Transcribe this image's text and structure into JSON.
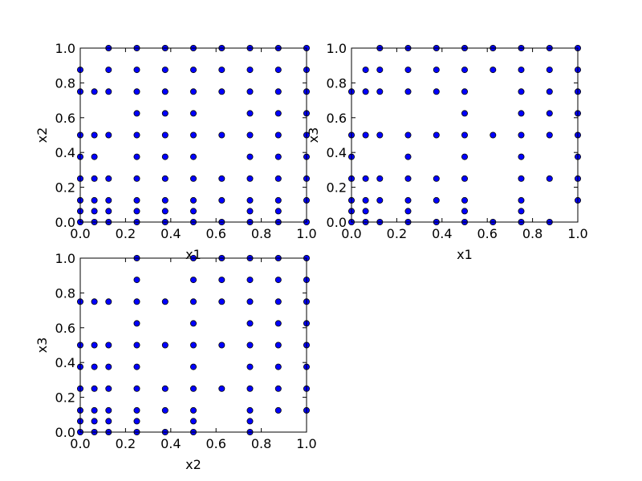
{
  "colors": {
    "marker_fill": "#0000ff",
    "marker_edge": "#000000",
    "axes": "#000000",
    "background": "#ffffff"
  },
  "chart_data": [
    {
      "type": "scatter",
      "title": "",
      "xlabel": "x1",
      "ylabel": "x2",
      "xlim": [
        0,
        1
      ],
      "ylim": [
        0,
        1
      ],
      "xticks": [
        "0.0",
        "0.2",
        "0.4",
        "0.6",
        "0.8",
        "1.0"
      ],
      "yticks": [
        "0.0",
        "0.2",
        "0.4",
        "0.6",
        "0.8",
        "1.0"
      ],
      "grid": false,
      "legend": "none",
      "x_values": [
        0,
        0.0625,
        0.125,
        0.25,
        0.375,
        0.5,
        0.625,
        0.75,
        0.875,
        1
      ],
      "y_values": [
        0,
        0.0625,
        0.125,
        0.25,
        0.375,
        0.5,
        0.625,
        0.75,
        0.875,
        1
      ],
      "points": [
        [
          0,
          0
        ],
        [
          0,
          0.0625
        ],
        [
          0,
          0.125
        ],
        [
          0,
          0.25
        ],
        [
          0,
          0.375
        ],
        [
          0,
          0.5
        ],
        [
          0,
          0.75
        ],
        [
          0,
          0.875
        ],
        [
          0.0625,
          0
        ],
        [
          0.0625,
          0.0625
        ],
        [
          0.0625,
          0.125
        ],
        [
          0.0625,
          0.25
        ],
        [
          0.0625,
          0.375
        ],
        [
          0.0625,
          0.5
        ],
        [
          0.0625,
          0.75
        ],
        [
          0.125,
          0
        ],
        [
          0.125,
          0.0625
        ],
        [
          0.125,
          0.125
        ],
        [
          0.125,
          0.25
        ],
        [
          0.125,
          0.5
        ],
        [
          0.125,
          0.75
        ],
        [
          0.125,
          0.875
        ],
        [
          0.125,
          1
        ],
        [
          0.25,
          0
        ],
        [
          0.25,
          0.0625
        ],
        [
          0.25,
          0.125
        ],
        [
          0.25,
          0.25
        ],
        [
          0.25,
          0.375
        ],
        [
          0.25,
          0.5
        ],
        [
          0.25,
          0.625
        ],
        [
          0.25,
          0.75
        ],
        [
          0.25,
          0.875
        ],
        [
          0.25,
          1
        ],
        [
          0.375,
          0
        ],
        [
          0.375,
          0.0625
        ],
        [
          0.375,
          0.125
        ],
        [
          0.375,
          0.25
        ],
        [
          0.375,
          0.375
        ],
        [
          0.375,
          0.5
        ],
        [
          0.375,
          0.625
        ],
        [
          0.375,
          0.75
        ],
        [
          0.375,
          0.875
        ],
        [
          0.375,
          1
        ],
        [
          0.5,
          0
        ],
        [
          0.5,
          0.0625
        ],
        [
          0.5,
          0.125
        ],
        [
          0.5,
          0.25
        ],
        [
          0.5,
          0.375
        ],
        [
          0.5,
          0.5
        ],
        [
          0.5,
          0.625
        ],
        [
          0.5,
          0.75
        ],
        [
          0.5,
          0.875
        ],
        [
          0.5,
          1
        ],
        [
          0.625,
          0
        ],
        [
          0.625,
          0.125
        ],
        [
          0.625,
          0.25
        ],
        [
          0.625,
          0.5
        ],
        [
          0.625,
          0.75
        ],
        [
          0.625,
          0.875
        ],
        [
          0.625,
          1
        ],
        [
          0.75,
          0
        ],
        [
          0.75,
          0.0625
        ],
        [
          0.75,
          0.125
        ],
        [
          0.75,
          0.25
        ],
        [
          0.75,
          0.375
        ],
        [
          0.75,
          0.5
        ],
        [
          0.75,
          0.625
        ],
        [
          0.75,
          0.75
        ],
        [
          0.75,
          0.875
        ],
        [
          0.75,
          1
        ],
        [
          0.875,
          0
        ],
        [
          0.875,
          0.0625
        ],
        [
          0.875,
          0.125
        ],
        [
          0.875,
          0.25
        ],
        [
          0.875,
          0.375
        ],
        [
          0.875,
          0.5
        ],
        [
          0.875,
          0.625
        ],
        [
          0.875,
          0.75
        ],
        [
          0.875,
          0.875
        ],
        [
          0.875,
          1
        ],
        [
          1,
          0
        ],
        [
          1,
          0.125
        ],
        [
          1,
          0.25
        ],
        [
          1,
          0.375
        ],
        [
          1,
          0.5
        ],
        [
          1,
          0.625
        ],
        [
          1,
          0.75
        ],
        [
          1,
          0.875
        ],
        [
          1,
          1
        ]
      ]
    },
    {
      "type": "scatter",
      "title": "",
      "xlabel": "x1",
      "ylabel": "x3",
      "xlim": [
        0,
        1
      ],
      "ylim": [
        0,
        1
      ],
      "xticks": [
        "0.0",
        "0.2",
        "0.4",
        "0.6",
        "0.8",
        "1.0"
      ],
      "yticks": [
        "0.0",
        "0.2",
        "0.4",
        "0.6",
        "0.8",
        "1.0"
      ],
      "grid": false,
      "legend": "none",
      "x_values": [
        0,
        0.0625,
        0.125,
        0.25,
        0.375,
        0.5,
        0.625,
        0.75,
        0.875,
        1
      ],
      "y_values": [
        0,
        0.0625,
        0.125,
        0.25,
        0.375,
        0.5,
        0.625,
        0.75,
        0.875,
        1
      ],
      "points": [
        [
          0,
          0
        ],
        [
          0,
          0.0625
        ],
        [
          0,
          0.125
        ],
        [
          0,
          0.25
        ],
        [
          0,
          0.375
        ],
        [
          0,
          0.5
        ],
        [
          0,
          0.75
        ],
        [
          0.0625,
          0
        ],
        [
          0.0625,
          0.0625
        ],
        [
          0.0625,
          0.125
        ],
        [
          0.0625,
          0.25
        ],
        [
          0.0625,
          0.5
        ],
        [
          0.0625,
          0.75
        ],
        [
          0.0625,
          0.875
        ],
        [
          0.125,
          0
        ],
        [
          0.125,
          0.125
        ],
        [
          0.125,
          0.25
        ],
        [
          0.125,
          0.5
        ],
        [
          0.125,
          0.75
        ],
        [
          0.125,
          0.875
        ],
        [
          0.125,
          1
        ],
        [
          0.25,
          0
        ],
        [
          0.25,
          0.0625
        ],
        [
          0.25,
          0.125
        ],
        [
          0.25,
          0.25
        ],
        [
          0.25,
          0.375
        ],
        [
          0.25,
          0.5
        ],
        [
          0.25,
          0.75
        ],
        [
          0.25,
          0.875
        ],
        [
          0.25,
          1
        ],
        [
          0.375,
          0
        ],
        [
          0.375,
          0.125
        ],
        [
          0.375,
          0.25
        ],
        [
          0.375,
          0.5
        ],
        [
          0.375,
          0.75
        ],
        [
          0.375,
          0.875
        ],
        [
          0.375,
          1
        ],
        [
          0.5,
          0
        ],
        [
          0.5,
          0.0625
        ],
        [
          0.5,
          0.125
        ],
        [
          0.5,
          0.25
        ],
        [
          0.5,
          0.375
        ],
        [
          0.5,
          0.5
        ],
        [
          0.5,
          0.625
        ],
        [
          0.5,
          0.75
        ],
        [
          0.5,
          0.875
        ],
        [
          0.5,
          1
        ],
        [
          0.625,
          0
        ],
        [
          0.625,
          0.5
        ],
        [
          0.625,
          0.875
        ],
        [
          0.625,
          1
        ],
        [
          0.75,
          0
        ],
        [
          0.75,
          0.0625
        ],
        [
          0.75,
          0.125
        ],
        [
          0.75,
          0.25
        ],
        [
          0.75,
          0.375
        ],
        [
          0.75,
          0.5
        ],
        [
          0.75,
          0.625
        ],
        [
          0.75,
          0.75
        ],
        [
          0.75,
          0.875
        ],
        [
          0.75,
          1
        ],
        [
          0.875,
          0
        ],
        [
          0.875,
          0.25
        ],
        [
          0.875,
          0.5
        ],
        [
          0.875,
          0.625
        ],
        [
          0.875,
          0.75
        ],
        [
          0.875,
          0.875
        ],
        [
          0.875,
          1
        ],
        [
          1,
          0.125
        ],
        [
          1,
          0.25
        ],
        [
          1,
          0.375
        ],
        [
          1,
          0.5
        ],
        [
          1,
          0.625
        ],
        [
          1,
          0.75
        ],
        [
          1,
          0.875
        ],
        [
          1,
          1
        ]
      ]
    },
    {
      "type": "scatter",
      "title": "",
      "xlabel": "x2",
      "ylabel": "x3",
      "xlim": [
        0,
        1
      ],
      "ylim": [
        0,
        1
      ],
      "xticks": [
        "0.0",
        "0.2",
        "0.4",
        "0.6",
        "0.8",
        "1.0"
      ],
      "yticks": [
        "0.0",
        "0.2",
        "0.4",
        "0.6",
        "0.8",
        "1.0"
      ],
      "grid": false,
      "legend": "none",
      "x_values": [
        0,
        0.0625,
        0.125,
        0.25,
        0.375,
        0.5,
        0.625,
        0.75,
        0.875,
        1
      ],
      "y_values": [
        0,
        0.0625,
        0.125,
        0.25,
        0.375,
        0.5,
        0.625,
        0.75,
        0.875,
        1
      ],
      "points": [
        [
          0,
          0
        ],
        [
          0,
          0.0625
        ],
        [
          0,
          0.125
        ],
        [
          0,
          0.25
        ],
        [
          0,
          0.375
        ],
        [
          0,
          0.5
        ],
        [
          0,
          0.75
        ],
        [
          0.0625,
          0
        ],
        [
          0.0625,
          0.0625
        ],
        [
          0.0625,
          0.125
        ],
        [
          0.0625,
          0.25
        ],
        [
          0.0625,
          0.375
        ],
        [
          0.0625,
          0.5
        ],
        [
          0.0625,
          0.75
        ],
        [
          0.125,
          0
        ],
        [
          0.125,
          0.0625
        ],
        [
          0.125,
          0.125
        ],
        [
          0.125,
          0.25
        ],
        [
          0.125,
          0.375
        ],
        [
          0.125,
          0.5
        ],
        [
          0.125,
          0.75
        ],
        [
          0.25,
          0
        ],
        [
          0.25,
          0.0625
        ],
        [
          0.25,
          0.125
        ],
        [
          0.25,
          0.25
        ],
        [
          0.25,
          0.375
        ],
        [
          0.25,
          0.5
        ],
        [
          0.25,
          0.625
        ],
        [
          0.25,
          0.75
        ],
        [
          0.25,
          0.875
        ],
        [
          0.25,
          1
        ],
        [
          0.375,
          0
        ],
        [
          0.375,
          0.125
        ],
        [
          0.375,
          0.25
        ],
        [
          0.375,
          0.5
        ],
        [
          0.375,
          0.75
        ],
        [
          0.5,
          0
        ],
        [
          0.5,
          0.0625
        ],
        [
          0.5,
          0.125
        ],
        [
          0.5,
          0.25
        ],
        [
          0.5,
          0.375
        ],
        [
          0.5,
          0.5
        ],
        [
          0.5,
          0.625
        ],
        [
          0.5,
          0.75
        ],
        [
          0.5,
          0.875
        ],
        [
          0.5,
          1
        ],
        [
          0.625,
          0.25
        ],
        [
          0.625,
          0.5
        ],
        [
          0.625,
          0.75
        ],
        [
          0.625,
          0.875
        ],
        [
          0.625,
          1
        ],
        [
          0.75,
          0
        ],
        [
          0.75,
          0.0625
        ],
        [
          0.75,
          0.125
        ],
        [
          0.75,
          0.25
        ],
        [
          0.75,
          0.375
        ],
        [
          0.75,
          0.5
        ],
        [
          0.75,
          0.625
        ],
        [
          0.75,
          0.75
        ],
        [
          0.75,
          0.875
        ],
        [
          0.75,
          1
        ],
        [
          0.875,
          0.125
        ],
        [
          0.875,
          0.25
        ],
        [
          0.875,
          0.375
        ],
        [
          0.875,
          0.5
        ],
        [
          0.875,
          0.625
        ],
        [
          0.875,
          0.75
        ],
        [
          0.875,
          0.875
        ],
        [
          0.875,
          1
        ],
        [
          1,
          0.125
        ],
        [
          1,
          0.25
        ],
        [
          1,
          0.375
        ],
        [
          1,
          0.5
        ],
        [
          1,
          0.625
        ],
        [
          1,
          0.75
        ],
        [
          1,
          0.875
        ],
        [
          1,
          1
        ]
      ]
    }
  ]
}
